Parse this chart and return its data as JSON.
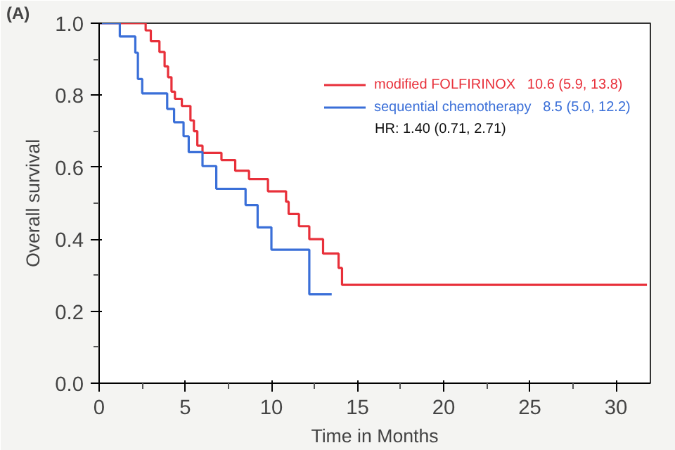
{
  "chart_data": {
    "type": "step",
    "title": "(A)",
    "xlabel": "Time in Months",
    "ylabel": "Overall survival",
    "xlim": [
      0,
      32
    ],
    "ylim": [
      0,
      1
    ],
    "xticks": [
      0,
      5,
      10,
      15,
      20,
      25,
      30
    ],
    "yticks": [
      {
        "value": 0,
        "label": "0.0"
      },
      {
        "value": 0.2,
        "label": "0.2"
      },
      {
        "value": 0.4,
        "label": "0.4"
      },
      {
        "value": 0.6,
        "label": "0.6"
      },
      {
        "value": 0.8,
        "label": "0.8"
      },
      {
        "value": 1,
        "label": "1.0"
      }
    ],
    "grid": false,
    "legend": "top right",
    "marker": "none",
    "line_style": "solid",
    "series": [
      {
        "name": "modified FOLFIRINOX   10.6 (5.9, 13.8)",
        "color": "#e8303a",
        "x": [
          0,
          2.7,
          3.0,
          3.5,
          3.8,
          4.0,
          4.2,
          4.4,
          4.8,
          5.3,
          5.5,
          5.7,
          6.0,
          7.1,
          7.9,
          8.7,
          9.8,
          10.85,
          11.0,
          11.6,
          12.2,
          13.0,
          13.9,
          14.1,
          31.8
        ],
        "values": [
          1.0,
          0.98,
          0.95,
          0.92,
          0.88,
          0.85,
          0.81,
          0.79,
          0.77,
          0.73,
          0.7,
          0.66,
          0.64,
          0.62,
          0.59,
          0.567,
          0.533,
          0.504,
          0.47,
          0.436,
          0.4,
          0.36,
          0.32,
          0.273,
          0.273
        ]
      },
      {
        "name": "sequential chemotherapy   8.5 (5.0, 12.2)",
        "color": "#3a6fd8",
        "x": [
          0,
          1.2,
          2.1,
          2.25,
          2.5,
          3.95,
          4.35,
          4.9,
          5.2,
          6.0,
          6.8,
          8.5,
          9.2,
          10.0,
          12.2,
          13.5
        ],
        "values": [
          1.0,
          0.963,
          0.918,
          0.845,
          0.805,
          0.762,
          0.725,
          0.686,
          0.642,
          0.603,
          0.54,
          0.495,
          0.433,
          0.371,
          0.247,
          0.247
        ]
      }
    ],
    "annotations": [
      "HR: 1.40 (0.71, 2.71)"
    ]
  }
}
